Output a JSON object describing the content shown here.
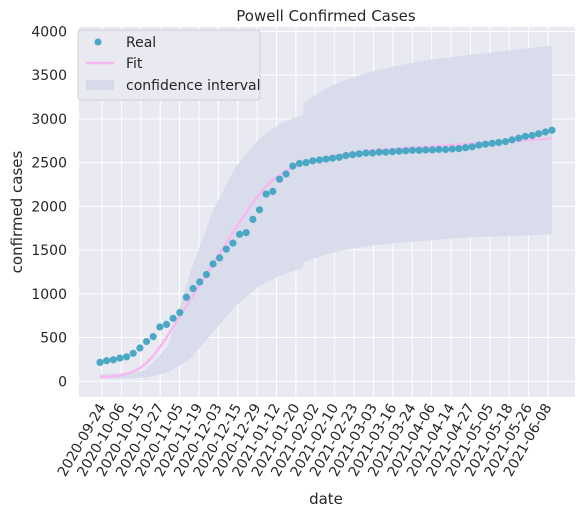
{
  "chart_data": {
    "type": "scatter",
    "title": "Powell Confirmed Cases",
    "xlabel": "date",
    "ylabel": "confirmed cases",
    "ylim": [
      -180,
      4050
    ],
    "yticks": [
      0,
      500,
      1000,
      1500,
      2000,
      2500,
      3000,
      3500,
      4000
    ],
    "xtick_labels": [
      "2020-09-24",
      "2020-10-06",
      "2020-10-15",
      "2020-10-27",
      "2020-11-05",
      "2020-11-19",
      "2020-12-03",
      "2020-12-15",
      "2020-12-29",
      "2021-01-12",
      "2021-01-20",
      "2021-02-02",
      "2021-02-10",
      "2021-02-23",
      "2021-03-03",
      "2021-03-16",
      "2021-03-24",
      "2021-04-06",
      "2021-04-14",
      "2021-04-27",
      "2021-05-05",
      "2021-05-18",
      "2021-05-26",
      "2021-06-08"
    ],
    "grid": true,
    "legend_position": "top-left",
    "legend": [
      "Real",
      "Fit",
      "confidence interval"
    ],
    "colors": {
      "real": "#4aa8c5",
      "fit": "#f7b8f2",
      "ci": "#d6daea",
      "background": "#e9e9f2",
      "grid": "#ffffff"
    },
    "series": [
      {
        "name": "Real",
        "kind": "scatter",
        "y": [
          215,
          235,
          245,
          265,
          280,
          320,
          380,
          455,
          510,
          620,
          650,
          720,
          785,
          960,
          1060,
          1135,
          1220,
          1340,
          1410,
          1510,
          1580,
          1680,
          1700,
          1850,
          1960,
          2140,
          2170,
          2310,
          2370,
          2460,
          2490,
          2500,
          2520,
          2530,
          2540,
          2550,
          2560,
          2580,
          2590,
          2600,
          2610,
          2610,
          2620,
          2620,
          2625,
          2630,
          2635,
          2640,
          2640,
          2645,
          2645,
          2650,
          2650,
          2655,
          2660,
          2670,
          2680,
          2700,
          2710,
          2720,
          2730,
          2740,
          2760,
          2780,
          2800,
          2810,
          2830,
          2850,
          2870
        ]
      },
      {
        "name": "Fit",
        "kind": "line",
        "y": [
          50,
          52,
          58,
          68,
          85,
          110,
          150,
          210,
          290,
          390,
          500,
          620,
          740,
          860,
          980,
          1100,
          1220,
          1340,
          1460,
          1580,
          1700,
          1820,
          1930,
          2040,
          2140,
          2230,
          2300,
          2360,
          2410,
          2440,
          2470,
          2500,
          2520,
          2540,
          2560,
          2575,
          2590,
          2600,
          2610,
          2620,
          2630,
          2640,
          2645,
          2650,
          2655,
          2660,
          2665,
          2670,
          2675,
          2680,
          2685,
          2690,
          2695,
          2700,
          2705,
          2710,
          2715,
          2720,
          2725,
          2730,
          2735,
          2740,
          2745,
          2750,
          2755,
          2760,
          2765,
          2770,
          2780
        ]
      },
      {
        "name": "confidence interval",
        "kind": "band",
        "x_frac": [
          0,
          0.05,
          0.1,
          0.15,
          0.2,
          0.25,
          0.3,
          0.35,
          0.4,
          0.45,
          0.4501,
          0.5,
          0.55,
          0.6,
          0.65,
          0.7,
          0.75,
          0.8,
          0.85,
          0.9,
          0.95,
          1.0
        ],
        "lower": [
          30,
          30,
          40,
          100,
          260,
          560,
          860,
          1080,
          1210,
          1300,
          1360,
          1450,
          1510,
          1550,
          1580,
          1600,
          1620,
          1640,
          1650,
          1660,
          1670,
          1680
        ],
        "upper": [
          80,
          90,
          120,
          400,
          1250,
          1950,
          2450,
          2760,
          2950,
          3050,
          3180,
          3350,
          3460,
          3540,
          3600,
          3650,
          3690,
          3720,
          3750,
          3780,
          3810,
          3840
        ]
      }
    ]
  }
}
